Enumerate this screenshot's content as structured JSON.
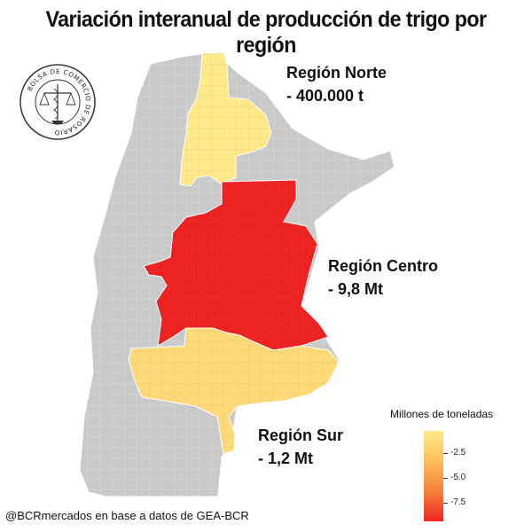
{
  "title": "Variación interanual de producción de trigo por región",
  "regions": [
    {
      "id": "norte",
      "name": "Región Norte",
      "value_text": "- 400.000 t",
      "color": "#ffe98a"
    },
    {
      "id": "centro",
      "name": "Región Centro",
      "value_text": "- 9,8 Mt",
      "color": "#ee2424"
    },
    {
      "id": "sur",
      "name": "Región Sur",
      "value_text": "- 1,2 Mt",
      "color": "#ffd97a"
    }
  ],
  "legend": {
    "title": "Millones de toneladas",
    "ticks": [
      "-2.5",
      "-5.0",
      "-7.5"
    ],
    "gradient_colors": [
      "#ffe98a",
      "#fdbf5a",
      "#f7803a",
      "#ee2424"
    ]
  },
  "logo": {
    "text": "BOLSA DE COMERCIO DE ROSARIO"
  },
  "credit": "@BCRmercados en base a datos de GEA-BCR",
  "colors": {
    "other_land": "#c9c9c9",
    "border": "#ffffff"
  }
}
